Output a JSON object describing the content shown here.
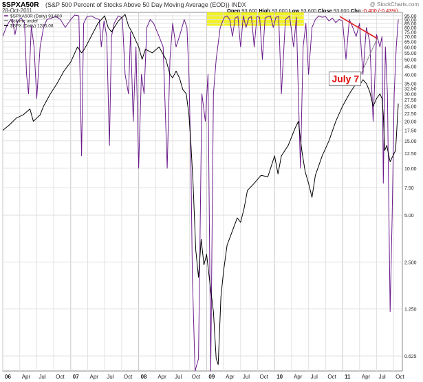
{
  "header": {
    "symbol": "$SPXA50R",
    "description": "(S&P 500 Percent of Stocks Above 50 Day Moving Average (EOD)) INDX",
    "date": "28-Oct-2011",
    "copyright": "@ StockCharts.com",
    "open_label": "Open",
    "open": "93.600",
    "high_label": "High",
    "high": "93.600",
    "low_label": "Low",
    "low": "93.600",
    "close_label": "Close",
    "close": "93.600",
    "chg_label": "Chg",
    "chg": "-0.400 (-0.43%)"
  },
  "chart_data": {
    "type": "line",
    "scale": "log",
    "legend": [
      {
        "name": "$SPXA50R (Daily) 93.600",
        "color": "#6a1a8a"
      },
      {
        "name": "Volume undef",
        "color": "#888888"
      },
      {
        "name": "$SPX (Daily) 1285.08",
        "color": "#000000"
      }
    ],
    "legend_position": "top-left",
    "ylim": [
      0.5,
      100
    ],
    "y_ticks": [
      "95.00",
      "90.00",
      "85.00",
      "80.00",
      "75.00",
      "70.00",
      "65.00",
      "60.00",
      "55.00",
      "50.00",
      "45.00",
      "40.00",
      "35.00",
      "32.50",
      "30.00",
      "27.50",
      "25.00",
      "22.50",
      "20.00",
      "17.50",
      "15.00",
      "12.50",
      "10.00",
      "7.50",
      "5.00",
      "2.500",
      "1.250",
      "0.625"
    ],
    "x_ticks": [
      "06",
      "Apr",
      "Jul",
      "Oct",
      "07",
      "Apr",
      "Jul",
      "Oct",
      "08",
      "Apr",
      "Jul",
      "Oct",
      "09",
      "Apr",
      "Jul",
      "Oct",
      "10",
      "Apr",
      "Jul",
      "Oct",
      "11",
      "Apr",
      "Jul",
      "Oct"
    ],
    "series": [
      {
        "name": "$SPXA50R",
        "color": "#6a1a8a",
        "x": [
          2006.0,
          2006.05,
          2006.1,
          2006.14,
          2006.18,
          2006.22,
          2006.27,
          2006.32,
          2006.35,
          2006.38,
          2006.42,
          2006.46,
          2006.5,
          2006.55,
          2006.6,
          2006.65,
          2006.72,
          2006.78,
          2006.85,
          2006.92,
          2007.0,
          2007.06,
          2007.12,
          2007.16,
          2007.19,
          2007.24,
          2007.3,
          2007.36,
          2007.42,
          2007.45,
          2007.49,
          2007.53,
          2007.57,
          2007.6,
          2007.64,
          2007.7,
          2007.76,
          2007.8,
          2007.85,
          2007.88,
          2007.92,
          2007.96,
          2008.0,
          2008.04,
          2008.08,
          2008.12,
          2008.17,
          2008.22,
          2008.3,
          2008.36,
          2008.42,
          2008.46,
          2008.5,
          2008.55,
          2008.62,
          2008.67,
          2008.71,
          2008.74,
          2008.77,
          2008.79,
          2008.83,
          2008.88,
          2008.93,
          2008.98,
          2009.02,
          2009.06,
          2009.1,
          2009.14,
          2009.2,
          2009.26,
          2009.3,
          2009.34,
          2009.38,
          2009.42,
          2009.46,
          2009.5,
          2009.54,
          2009.58,
          2009.62,
          2009.66,
          2009.7,
          2009.74,
          2009.78,
          2009.82,
          2009.86,
          2009.9,
          2009.94,
          2009.98,
          2010.02,
          2010.06,
          2010.1,
          2010.16,
          2010.22,
          2010.28,
          2010.32,
          2010.35,
          2010.38,
          2010.42,
          2010.46,
          2010.5,
          2010.55,
          2010.6,
          2010.65,
          2010.7,
          2010.75,
          2010.8,
          2010.85,
          2010.9,
          2010.95,
          2011.0,
          2011.05,
          2011.1,
          2011.15,
          2011.2,
          2011.25,
          2011.3,
          2011.35,
          2011.4,
          2011.45,
          2011.5,
          2011.55,
          2011.58,
          2011.6,
          2011.63,
          2011.66,
          2011.7,
          2011.73,
          2011.76,
          2011.79,
          2011.82
        ],
        "y": [
          70,
          80,
          88,
          90,
          72,
          88,
          92,
          86,
          40,
          30,
          82,
          60,
          28,
          60,
          80,
          90,
          92,
          94,
          90,
          80,
          90,
          96,
          95,
          12,
          85,
          94,
          95,
          92,
          90,
          60,
          88,
          70,
          14,
          70,
          85,
          95,
          92,
          40,
          30,
          75,
          20,
          60,
          10,
          40,
          30,
          80,
          90,
          85,
          70,
          60,
          10,
          50,
          85,
          60,
          75,
          90,
          80,
          40,
          10,
          2,
          0.5,
          0.6,
          30,
          20,
          40,
          0.5,
          30,
          50,
          80,
          93,
          95,
          90,
          70,
          92,
          94,
          60,
          95,
          80,
          92,
          94,
          60,
          94,
          93,
          50,
          92,
          94,
          95,
          80,
          93,
          94,
          30,
          90,
          95,
          60,
          93,
          30,
          10,
          60,
          85,
          40,
          80,
          90,
          95,
          93,
          94,
          88,
          92,
          86,
          90,
          88,
          50,
          90,
          80,
          70,
          85,
          40,
          80,
          65,
          20,
          72,
          60,
          70,
          8,
          60,
          30,
          1.2,
          5,
          30,
          60,
          90
        ]
      },
      {
        "name": "$SPX",
        "color": "#000000",
        "x": [
          2006.0,
          2006.1,
          2006.2,
          2006.3,
          2006.4,
          2006.45,
          2006.5,
          2006.55,
          2006.6,
          2006.7,
          2006.8,
          2006.9,
          2007.0,
          2007.1,
          2007.16,
          2007.2,
          2007.3,
          2007.4,
          2007.5,
          2007.55,
          2007.6,
          2007.7,
          2007.8,
          2007.85,
          2007.9,
          2008.0,
          2008.05,
          2008.1,
          2008.2,
          2008.3,
          2008.4,
          2008.46,
          2008.5,
          2008.55,
          2008.6,
          2008.65,
          2008.7,
          2008.74,
          2008.77,
          2008.8,
          2008.84,
          2008.88,
          2008.92,
          2008.96,
          2009.0,
          2009.05,
          2009.1,
          2009.14,
          2009.17,
          2009.19,
          2009.21,
          2009.25,
          2009.3,
          2009.4,
          2009.45,
          2009.5,
          2009.55,
          2009.6,
          2009.7,
          2009.8,
          2009.9,
          2010.0,
          2010.05,
          2010.1,
          2010.2,
          2010.3,
          2010.35,
          2010.4,
          2010.45,
          2010.5,
          2010.55,
          2010.6,
          2010.7,
          2010.8,
          2010.9,
          2011.0,
          2011.1,
          2011.2,
          2011.25,
          2011.3,
          2011.35,
          2011.4,
          2011.45,
          2011.5,
          2011.55,
          2011.58,
          2011.6,
          2011.62,
          2011.65,
          2011.7,
          2011.74,
          2011.78,
          2011.82
        ],
        "y": [
          17.5,
          19,
          21,
          22,
          24,
          20,
          21,
          22,
          25,
          30,
          35,
          42,
          48,
          60,
          55,
          58,
          70,
          85,
          95,
          80,
          75,
          88,
          97,
          82,
          75,
          60,
          50,
          58,
          55,
          60,
          50,
          40,
          38,
          42,
          38,
          32,
          30,
          22,
          14,
          8,
          3,
          2,
          3.5,
          2.4,
          2.8,
          1.8,
          1.2,
          0.6,
          0.55,
          0.9,
          1.5,
          2.2,
          3.2,
          4.2,
          4.8,
          4.5,
          5.5,
          7.2,
          8,
          9,
          8.8,
          12,
          9.2,
          12,
          14,
          18,
          20,
          13,
          9.5,
          8,
          6.5,
          9,
          12,
          15,
          20,
          25,
          30,
          35,
          34,
          37,
          35,
          31,
          25,
          28,
          30,
          28,
          22,
          13,
          14,
          11,
          12,
          13,
          26
        ]
      },
      {
        "name": "trendline",
        "color": "#e02020",
        "x": [
          2010.96,
          2011.51
        ],
        "y": [
          94,
          68
        ]
      }
    ],
    "annotations": [
      {
        "text": "July 7",
        "x": 2011.51,
        "y": 45
      }
    ],
    "highlight": {
      "x": [
        2009.0,
        2010.43
      ],
      "y": [
        82,
        100
      ],
      "color": "#f0f000"
    }
  }
}
